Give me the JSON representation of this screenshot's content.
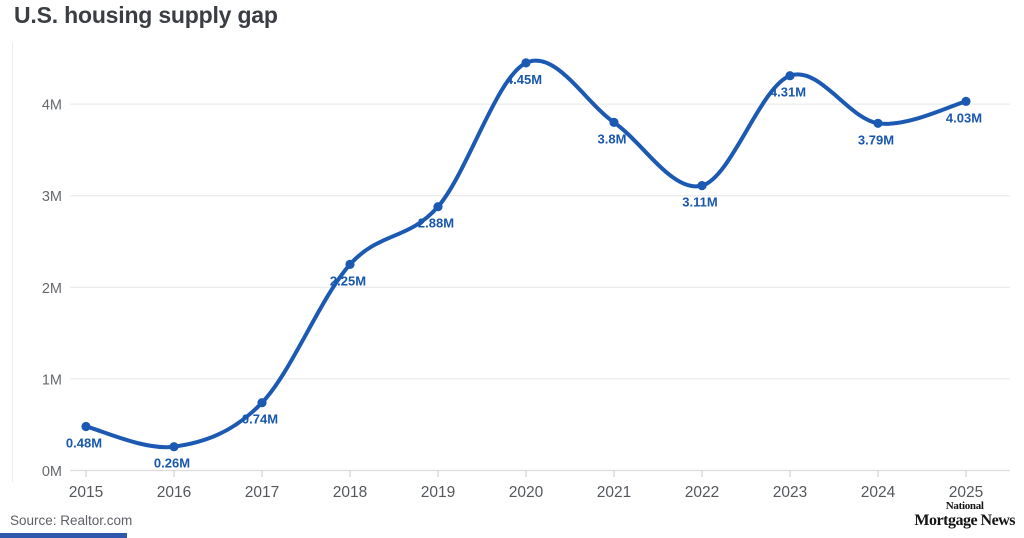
{
  "title": "U.S. housing supply gap",
  "source": "Source: Realtor.com",
  "logo": {
    "line1": "National",
    "line2": "Mortgage News"
  },
  "chart_data": {
    "type": "line",
    "title": "U.S. housing supply gap",
    "x": [
      2015,
      2016,
      2017,
      2018,
      2019,
      2020,
      2021,
      2022,
      2023,
      2024,
      2025
    ],
    "categories": [
      "2015",
      "2016",
      "2017",
      "2018",
      "2019",
      "2020",
      "2021",
      "2022",
      "2023",
      "2024",
      "2025"
    ],
    "values": [
      0.48,
      0.26,
      0.74,
      2.25,
      2.88,
      4.45,
      3.8,
      3.11,
      4.31,
      3.79,
      4.03
    ],
    "point_labels": [
      "0.48M",
      "0.26M",
      "0.74M",
      "2.25M",
      "2.88M",
      "4.45M",
      "3.8M",
      "3.11M",
      "4.31M",
      "3.79M",
      "4.03M"
    ],
    "xlabel": "",
    "ylabel": "",
    "ylim": [
      0,
      4.6
    ],
    "yticks": [
      0,
      1,
      2,
      3,
      4
    ],
    "ytick_labels": [
      "0M",
      "1M",
      "2M",
      "3M",
      "4M"
    ],
    "grid": true,
    "legend": "none",
    "line_color": "#1b59b2",
    "point_color": "#1b59b2",
    "label_color": "#1857ad",
    "grid_color": "#ececec",
    "baseline_color": "#dcdcdc",
    "tick_color": "#d5d5d5"
  },
  "colors": {
    "background": "#ffffff",
    "title_text": "#3a3e43",
    "axis_text": "#66696e",
    "accent_bar": "#2f58ad"
  }
}
